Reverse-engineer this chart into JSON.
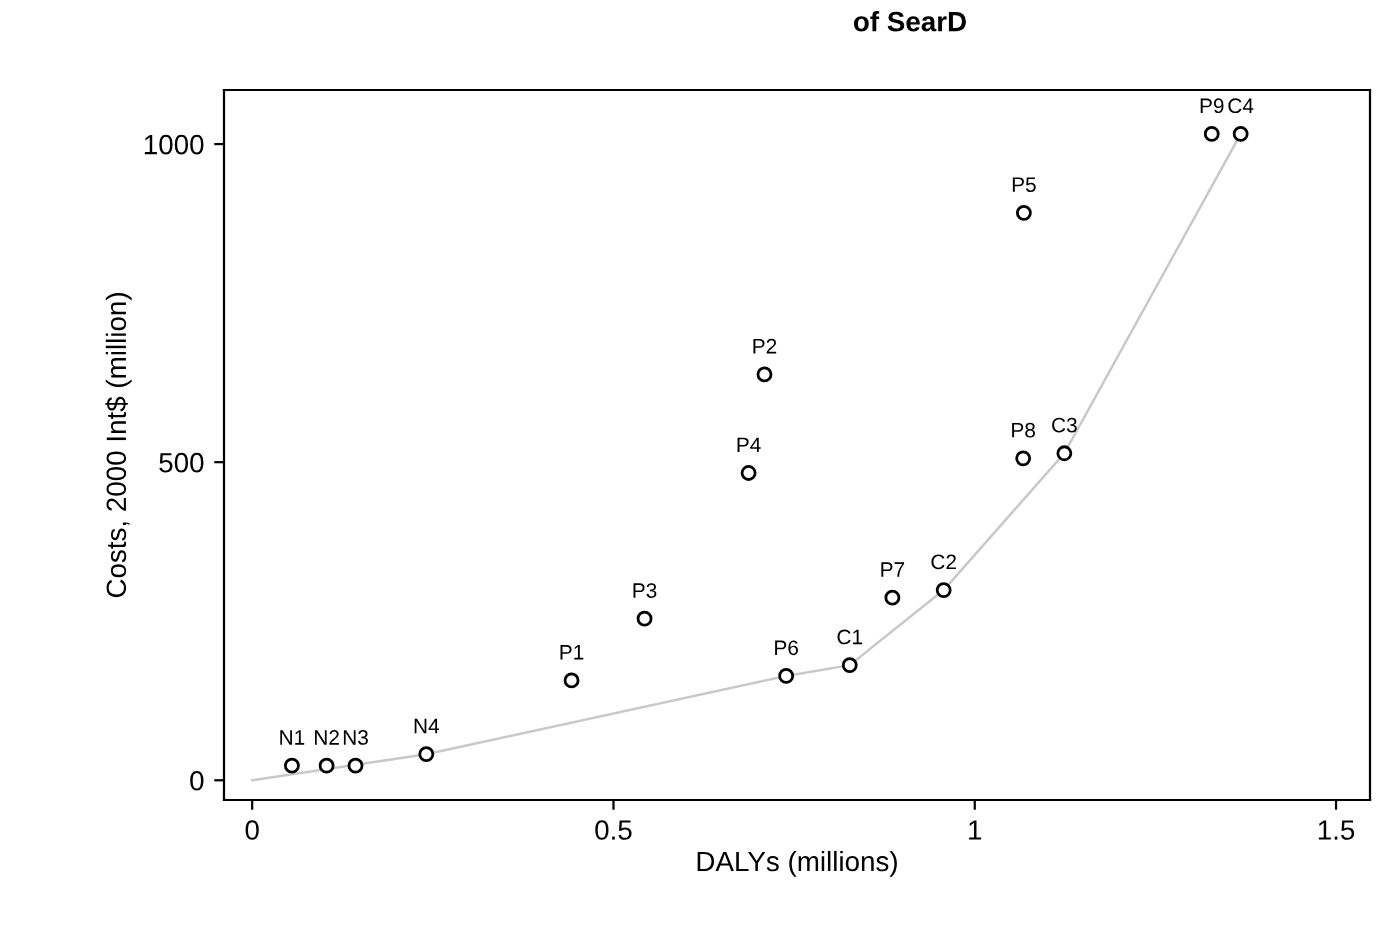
{
  "chart_data": {
    "type": "scatter",
    "title": "of SearD",
    "xlabel": "DALYs (millions)",
    "ylabel": "Costs, 2000 Int$ (million)",
    "xlim": [
      -0.039,
      1.547
    ],
    "ylim": [
      -31,
      1085
    ],
    "xticks": [
      0,
      0.5,
      1,
      1.5
    ],
    "yticks": [
      0,
      500,
      1000
    ],
    "grid": false,
    "legend": false,
    "series": [
      {
        "color": "#000000",
        "marker": "circle",
        "x": [
          0.055,
          0.103,
          0.143,
          0.241,
          0.442,
          0.709,
          0.543,
          0.687,
          1.068,
          0.739,
          0.886,
          1.067,
          1.328,
          0.827,
          0.957,
          1.124,
          1.368
        ],
        "values": [
          23,
          23,
          23,
          41,
          157,
          638,
          254,
          483,
          892,
          164,
          287,
          506,
          1016,
          181,
          299,
          514,
          1016
        ]
      },
      {
        "type": "line",
        "color": "#c8c8c8",
        "marker": "none",
        "line_style": "solid",
        "x": [
          0,
          0.241,
          0.739,
          0.827,
          0.957,
          1.124,
          1.368
        ],
        "values": [
          0,
          41,
          164,
          181,
          299,
          514,
          1016
        ]
      }
    ],
    "annotations": [
      {
        "text": "N1",
        "x": 0.055,
        "y": 23
      },
      {
        "text": "N2",
        "x": 0.103,
        "y": 23
      },
      {
        "text": "N3",
        "x": 0.143,
        "y": 23
      },
      {
        "text": "N4",
        "x": 0.241,
        "y": 41
      },
      {
        "text": "P1",
        "x": 0.442,
        "y": 157
      },
      {
        "text": "P2",
        "x": 0.709,
        "y": 638
      },
      {
        "text": "P3",
        "x": 0.543,
        "y": 254
      },
      {
        "text": "P4",
        "x": 0.687,
        "y": 483
      },
      {
        "text": "P5",
        "x": 1.068,
        "y": 892
      },
      {
        "text": "P6",
        "x": 0.739,
        "y": 164
      },
      {
        "text": "P7",
        "x": 0.886,
        "y": 287
      },
      {
        "text": "P8",
        "x": 1.067,
        "y": 506
      },
      {
        "text": "P9",
        "x": 1.328,
        "y": 1016
      },
      {
        "text": "C1",
        "x": 0.827,
        "y": 181
      },
      {
        "text": "C2",
        "x": 0.957,
        "y": 299
      },
      {
        "text": "C3",
        "x": 1.124,
        "y": 514
      },
      {
        "text": "C4",
        "x": 1.368,
        "y": 1016
      }
    ]
  }
}
